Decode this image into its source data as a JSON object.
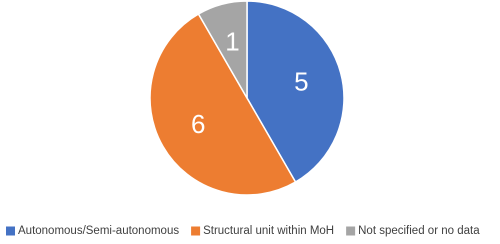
{
  "chart_data": {
    "type": "pie",
    "categories": [
      "Autonomous/Semi-autonomous",
      "Structural unit within MoH",
      "Not specified or no data"
    ],
    "values": [
      5,
      6,
      1
    ],
    "colors": [
      "#4472c4",
      "#ed7d31",
      "#a5a5a5"
    ],
    "legend": "bottom"
  }
}
